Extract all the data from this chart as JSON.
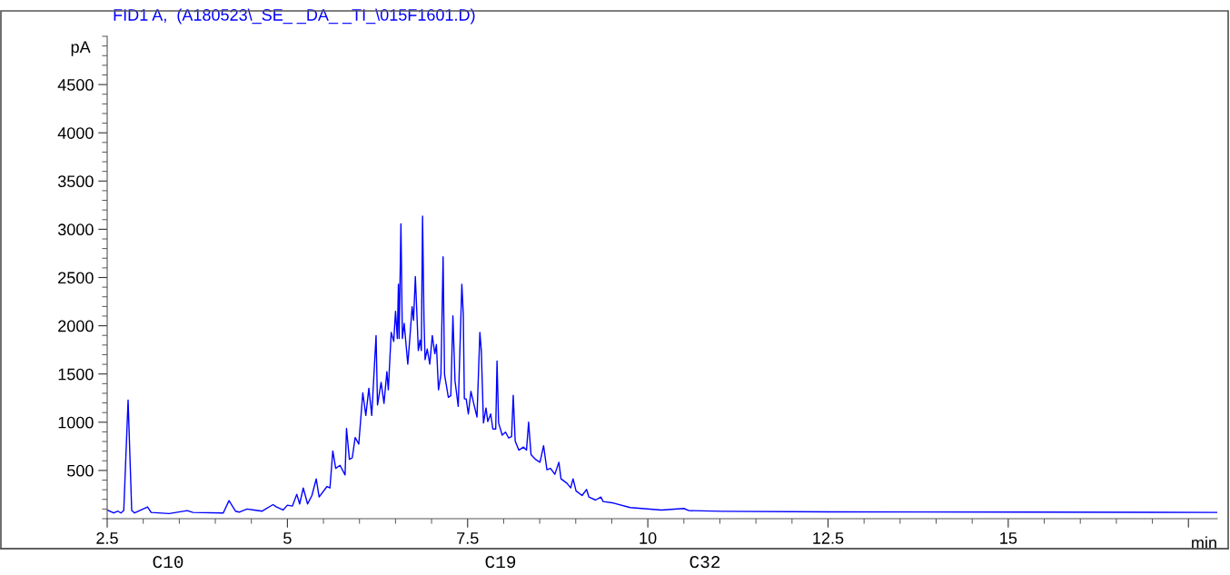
{
  "chart_data": {
    "type": "line",
    "title": "FID1 A,  (A180523\\_SE_ _DA_ _TI_\\015F1601.D)",
    "ylabel": "pA",
    "xlabel": "min",
    "x": [
      2.5,
      2.59,
      2.65,
      2.69,
      2.73,
      2.79,
      2.84,
      2.88,
      3.06,
      3.11,
      3.36,
      3.61,
      3.69,
      4.11,
      4.19,
      4.28,
      4.33,
      4.44,
      4.54,
      4.65,
      4.8,
      4.85,
      4.94,
      5.0,
      5.07,
      5.13,
      5.17,
      5.22,
      5.28,
      5.34,
      5.4,
      5.44,
      5.55,
      5.59,
      5.63,
      5.67,
      5.73,
      5.8,
      5.82,
      5.86,
      5.9,
      5.94,
      5.99,
      6.046,
      6.088,
      6.13,
      6.17,
      6.23,
      6.25,
      6.3,
      6.34,
      6.38,
      6.4,
      6.44,
      6.475,
      6.5,
      6.525,
      6.54,
      6.55,
      6.575,
      6.595,
      6.62,
      6.67,
      6.7,
      6.73,
      6.75,
      6.775,
      6.8,
      6.816,
      6.84,
      6.858,
      6.875,
      6.895,
      6.91,
      6.94,
      6.975,
      7.01,
      7.045,
      7.067,
      7.096,
      7.13,
      7.16,
      7.18,
      7.233,
      7.267,
      7.296,
      7.325,
      7.37,
      7.42,
      7.44,
      7.455,
      7.48,
      7.51,
      7.546,
      7.59,
      7.63,
      7.67,
      7.69,
      7.72,
      7.755,
      7.78,
      7.82,
      7.85,
      7.89,
      7.908,
      7.93,
      7.98,
      8.025,
      8.07,
      8.11,
      8.133,
      8.16,
      8.21,
      8.275,
      8.317,
      8.346,
      8.38,
      8.44,
      8.504,
      8.554,
      8.6,
      8.65,
      8.71,
      8.766,
      8.796,
      8.88,
      8.93,
      8.963,
      9.004,
      9.088,
      9.15,
      9.183,
      9.275,
      9.35,
      9.38,
      9.525,
      9.755,
      10.19,
      10.5,
      10.57,
      11.03,
      12.5,
      15.2,
      17.9
    ],
    "series": [
      {
        "color": "#0000ff",
        "values": [
          90,
          59,
          78,
          59,
          84,
          1230,
          84,
          59,
          122,
          65,
          53,
          84,
          65,
          59,
          187,
          78,
          68,
          100,
          90,
          78,
          146,
          122,
          90,
          140,
          131,
          253,
          153,
          318,
          153,
          240,
          412,
          225,
          334,
          318,
          703,
          522,
          553,
          453,
          935,
          615,
          631,
          841,
          772,
          1304,
          1070,
          1352,
          1070,
          1899,
          1179,
          1414,
          1195,
          1524,
          1336,
          1931,
          1837,
          2150,
          1868,
          2431,
          1868,
          3057,
          1868,
          2024,
          1602,
          1884,
          2197,
          2057,
          2510,
          2057,
          1743,
          1852,
          1743,
          3135,
          2057,
          1649,
          1758,
          1602,
          1899,
          1711,
          1805,
          1336,
          1493,
          2714,
          1493,
          1258,
          1274,
          2103,
          1430,
          1164,
          2431,
          2119,
          1242,
          1242,
          1085,
          1320,
          1179,
          1054,
          1931,
          1743,
          992,
          1148,
          1007,
          1085,
          930,
          930,
          1634,
          992,
          866,
          898,
          836,
          851,
          1279,
          804,
          710,
          742,
          710,
          1001,
          663,
          616,
          585,
          757,
          507,
          522,
          460,
          585,
          413,
          366,
          319,
          413,
          288,
          240,
          303,
          224,
          193,
          224,
          178,
          162,
          115,
          90,
          106,
          84,
          77,
          70,
          68,
          65
        ]
      }
    ],
    "xlim": [
      2.5,
      17.9
    ],
    "ylim": [
      0,
      5000
    ],
    "xticks": [
      2.5,
      5,
      7.5,
      10,
      12.5,
      15,
      {
        "value": 17.5,
        "label": null
      }
    ],
    "yticks": [
      500,
      1000,
      1500,
      2000,
      2500,
      3000,
      3500,
      4000,
      4500
    ],
    "grid": false,
    "legend": false,
    "line_style": "solid",
    "marker": "none",
    "annotations": [
      "C10",
      "C19",
      "C32"
    ]
  }
}
